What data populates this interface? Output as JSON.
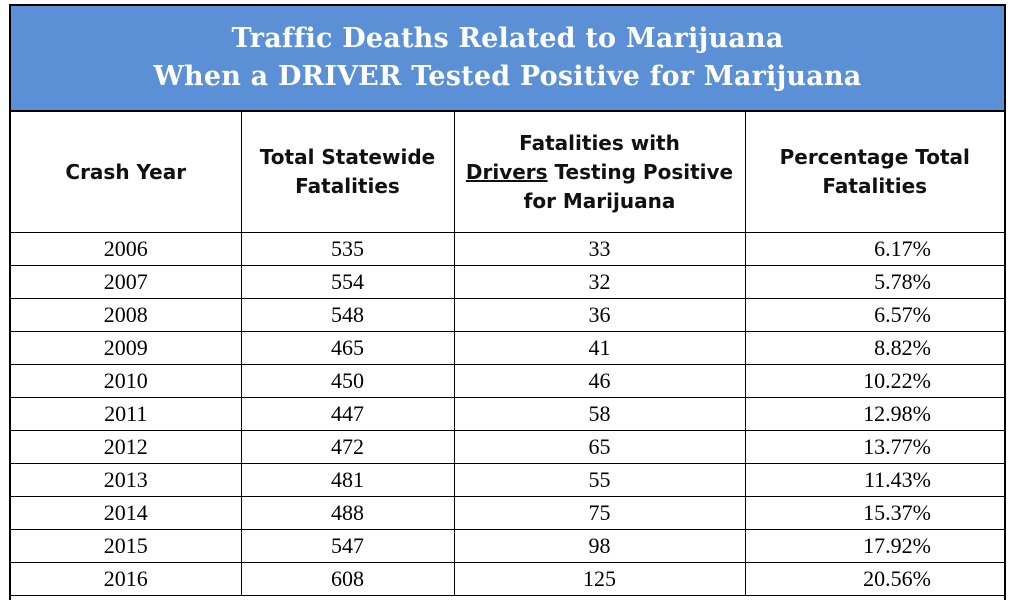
{
  "title": {
    "line1": "Traffic Deaths Related to Marijuana",
    "line2": "When a DRIVER Tested Positive for Marijuana"
  },
  "columns": {
    "crash_year": "Crash Year",
    "total_fatalities_1": "Total Statewide",
    "total_fatalities_2": "Fatalities",
    "positive_1": "Fatalities with",
    "positive_2a": "Drivers",
    "positive_2b": " Testing Positive",
    "positive_3": "for Marijuana",
    "pct_1": "Percentage Total",
    "pct_2": "Fatalities"
  },
  "colors": {
    "title_background": "#5b8fd6",
    "title_text": "#ffffff"
  },
  "rows": [
    {
      "year": "2006",
      "total": "535",
      "positive": "33",
      "pct": "6.17%"
    },
    {
      "year": "2007",
      "total": "554",
      "positive": "32",
      "pct": "5.78%"
    },
    {
      "year": "2008",
      "total": "548",
      "positive": "36",
      "pct": "6.57%"
    },
    {
      "year": "2009",
      "total": "465",
      "positive": "41",
      "pct": "8.82%"
    },
    {
      "year": "2010",
      "total": "450",
      "positive": "46",
      "pct": "10.22%"
    },
    {
      "year": "2011",
      "total": "447",
      "positive": "58",
      "pct": "12.98%"
    },
    {
      "year": "2012",
      "total": "472",
      "positive": "65",
      "pct": "13.77%"
    },
    {
      "year": "2013",
      "total": "481",
      "positive": "55",
      "pct": "11.43%"
    },
    {
      "year": "2014",
      "total": "488",
      "positive": "75",
      "pct": "15.37%"
    },
    {
      "year": "2015",
      "total": "547",
      "positive": "98",
      "pct": "17.92%"
    },
    {
      "year": "2016",
      "total": "608",
      "positive": "125",
      "pct": "20.56%"
    }
  ]
}
